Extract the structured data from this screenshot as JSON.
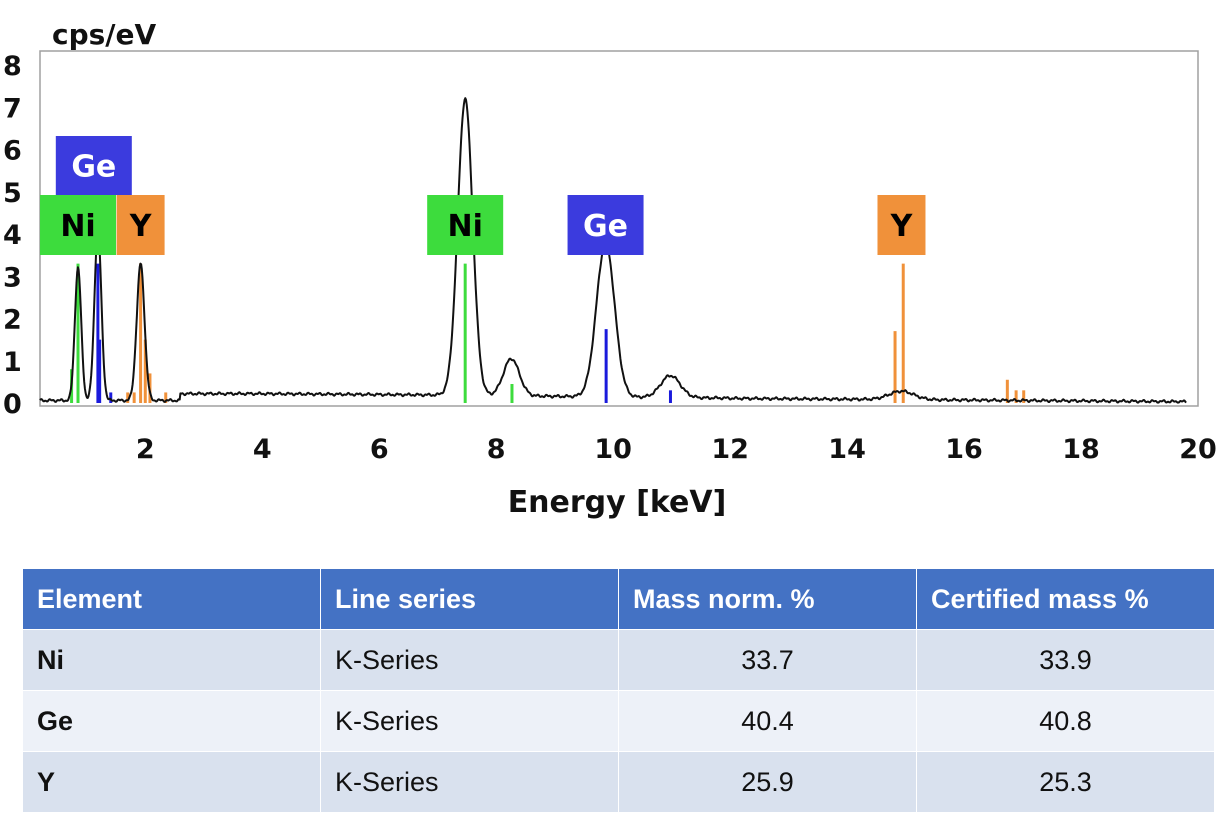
{
  "chart_data": {
    "type": "line",
    "ylabel": "cps/eV",
    "xlabel": "Energy [keV]",
    "xlim": [
      0.2,
      20
    ],
    "ylim": [
      0,
      8
    ],
    "x_ticks": [
      2,
      4,
      6,
      8,
      10,
      12,
      14,
      16,
      18,
      20
    ],
    "y_ticks": [
      0,
      1,
      2,
      3,
      4,
      5,
      6,
      7,
      8
    ],
    "grid": false,
    "series": [
      {
        "peaks": [
          {
            "x": 0.85,
            "y": 3.2
          },
          {
            "x": 1.19,
            "y": 4.1
          },
          {
            "x": 1.92,
            "y": 3.3
          },
          {
            "x": 7.47,
            "y": 7.2
          },
          {
            "x": 8.26,
            "y": 1.05
          },
          {
            "x": 9.87,
            "y": 3.8
          },
          {
            "x": 10.98,
            "y": 0.65
          },
          {
            "x": 14.93,
            "y": 0.28
          }
        ]
      }
    ],
    "element_lines": [
      {
        "element": "Ni",
        "color": "#3ddc3d",
        "lines": [
          {
            "x": 0.74,
            "h": 0.8
          },
          {
            "x": 0.85,
            "h": 3.3
          },
          {
            "x": 7.47,
            "h": 3.3
          },
          {
            "x": 8.27,
            "h": 0.45
          }
        ]
      },
      {
        "element": "Ge",
        "color": "#1a1adc",
        "lines": [
          {
            "x": 1.19,
            "h": 3.3
          },
          {
            "x": 1.22,
            "h": 1.5
          },
          {
            "x": 1.41,
            "h": 0.25
          },
          {
            "x": 9.88,
            "h": 1.75
          },
          {
            "x": 10.98,
            "h": 0.3
          }
        ]
      },
      {
        "element": "Y",
        "color": "#f0913a",
        "lines": [
          {
            "x": 1.7,
            "h": 0.25
          },
          {
            "x": 1.81,
            "h": 0.25
          },
          {
            "x": 1.92,
            "h": 3.3
          },
          {
            "x": 2.0,
            "h": 1.5
          },
          {
            "x": 2.08,
            "h": 0.7
          },
          {
            "x": 2.35,
            "h": 0.25
          },
          {
            "x": 14.82,
            "h": 1.7
          },
          {
            "x": 14.96,
            "h": 3.3
          },
          {
            "x": 16.74,
            "h": 0.55
          },
          {
            "x": 16.89,
            "h": 0.3
          },
          {
            "x": 17.02,
            "h": 0.3
          }
        ]
      }
    ],
    "element_labels": [
      {
        "text": "Ge",
        "x": 1.12,
        "row": "upper",
        "bg": "#3b3bde",
        "fg": "#ffffff"
      },
      {
        "text": "Ni",
        "x": 0.85,
        "row": "lower",
        "bg": "#3ddc3d",
        "fg": "#000000"
      },
      {
        "text": "Y",
        "x": 1.92,
        "row": "lower",
        "bg": "#f0913a",
        "fg": "#000000"
      },
      {
        "text": "Ni",
        "x": 7.47,
        "row": "lower",
        "bg": "#3ddc3d",
        "fg": "#000000"
      },
      {
        "text": "Ge",
        "x": 9.87,
        "row": "lower",
        "bg": "#3b3bde",
        "fg": "#ffffff"
      },
      {
        "text": "Y",
        "x": 14.93,
        "row": "lower",
        "bg": "#f0913a",
        "fg": "#000000"
      }
    ]
  },
  "table": {
    "headers": [
      "Element",
      "Line series",
      "Mass norm. %",
      "Certified  mass %"
    ],
    "rows": [
      {
        "element": "Ni",
        "series": "K-Series",
        "mass": "33.7",
        "certified": "33.9"
      },
      {
        "element": "Ge",
        "series": "K-Series",
        "mass": "40.4",
        "certified": "40.8"
      },
      {
        "element": "Y",
        "series": "K-Series",
        "mass": "25.9",
        "certified": "25.3"
      }
    ]
  }
}
